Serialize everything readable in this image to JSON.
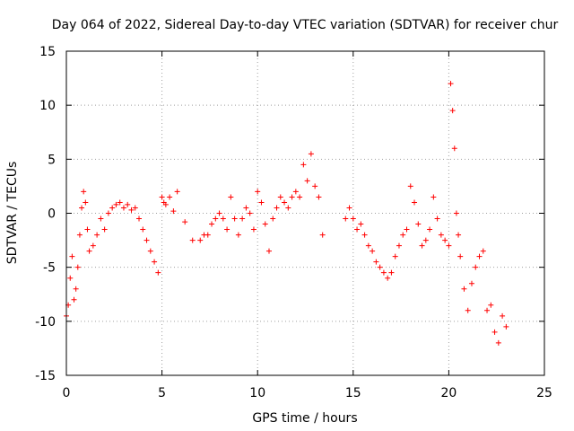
{
  "chart_data": {
    "type": "scatter",
    "title": "Day 064 of 2022, Sidereal Day-to-day VTEC variation (SDTVAR) for receiver chur",
    "xlabel": "GPS time / hours",
    "ylabel": "SDTVAR / TECUs",
    "xlim": [
      0,
      25
    ],
    "ylim": [
      -15,
      15
    ],
    "xticks": [
      "0",
      "5",
      "10",
      "15",
      "20",
      "25"
    ],
    "yticks": [
      "-15",
      "-10",
      "-5",
      "0",
      "5",
      "10",
      "15"
    ],
    "grid": true,
    "marker": "plus",
    "color": "#ff0000",
    "series": [
      {
        "name": "SDTVAR",
        "x": [
          0.0,
          0.1,
          0.2,
          0.3,
          0.4,
          0.5,
          0.6,
          0.7,
          0.8,
          0.9,
          1.0,
          1.1,
          1.2,
          1.4,
          1.6,
          1.8,
          2.0,
          2.2,
          2.4,
          2.6,
          2.8,
          3.0,
          3.2,
          3.4,
          3.6,
          3.8,
          4.0,
          4.2,
          4.4,
          4.6,
          4.8,
          5.0,
          5.1,
          5.2,
          5.4,
          5.6,
          5.8,
          6.2,
          6.6,
          7.0,
          7.2,
          7.4,
          7.6,
          7.8,
          8.0,
          8.2,
          8.4,
          8.6,
          8.8,
          9.0,
          9.2,
          9.4,
          9.6,
          9.8,
          10.0,
          10.2,
          10.4,
          10.6,
          10.8,
          11.0,
          11.2,
          11.4,
          11.6,
          11.8,
          12.0,
          12.2,
          12.4,
          12.6,
          12.8,
          13.0,
          13.2,
          13.4,
          14.6,
          14.8,
          15.0,
          15.2,
          15.4,
          15.6,
          15.8,
          16.0,
          16.2,
          16.4,
          16.6,
          16.8,
          17.0,
          17.2,
          17.4,
          17.6,
          17.8,
          18.0,
          18.2,
          18.4,
          18.6,
          18.8,
          19.0,
          19.2,
          19.4,
          19.6,
          19.8,
          20.0,
          20.1,
          20.2,
          20.3,
          20.4,
          20.5,
          20.6,
          20.8,
          21.0,
          21.2,
          21.4,
          21.6,
          21.8,
          22.0,
          22.2,
          22.4,
          22.6,
          22.8,
          23.0
        ],
        "y": [
          -9.5,
          -8.5,
          -6.0,
          -4.0,
          -8.0,
          -7.0,
          -5.0,
          -2.0,
          0.5,
          2.0,
          1.0,
          -1.5,
          -3.5,
          -3.0,
          -2.0,
          -0.5,
          -1.5,
          0.0,
          0.5,
          0.8,
          1.0,
          0.5,
          0.8,
          0.3,
          0.5,
          -0.5,
          -1.5,
          -2.5,
          -3.5,
          -4.5,
          -5.5,
          1.5,
          1.0,
          0.8,
          1.5,
          0.2,
          2.0,
          -0.8,
          -2.5,
          -2.5,
          -2.0,
          -2.0,
          -1.0,
          -0.5,
          0.0,
          -0.5,
          -1.5,
          1.5,
          -0.5,
          -2.0,
          -0.5,
          0.5,
          0.0,
          -1.5,
          2.0,
          1.0,
          -1.0,
          -3.5,
          -0.5,
          0.5,
          1.5,
          1.0,
          0.5,
          1.5,
          2.0,
          1.5,
          4.5,
          3.0,
          5.5,
          2.5,
          1.5,
          -2.0,
          -0.5,
          0.5,
          -0.5,
          -1.5,
          -1.0,
          -2.0,
          -3.0,
          -3.5,
          -4.5,
          -5.0,
          -5.5,
          -6.0,
          -5.5,
          -4.0,
          -3.0,
          -2.0,
          -1.5,
          2.5,
          1.0,
          -1.0,
          -3.0,
          -2.5,
          -1.5,
          1.5,
          -0.5,
          -2.0,
          -2.5,
          -3.0,
          12.0,
          9.5,
          6.0,
          0.0,
          -2.0,
          -4.0,
          -7.0,
          -9.0,
          -6.5,
          -5.0,
          -4.0,
          -3.5,
          -9.0,
          -8.5,
          -11.0,
          -12.0,
          -9.5,
          -10.5
        ]
      }
    ]
  }
}
